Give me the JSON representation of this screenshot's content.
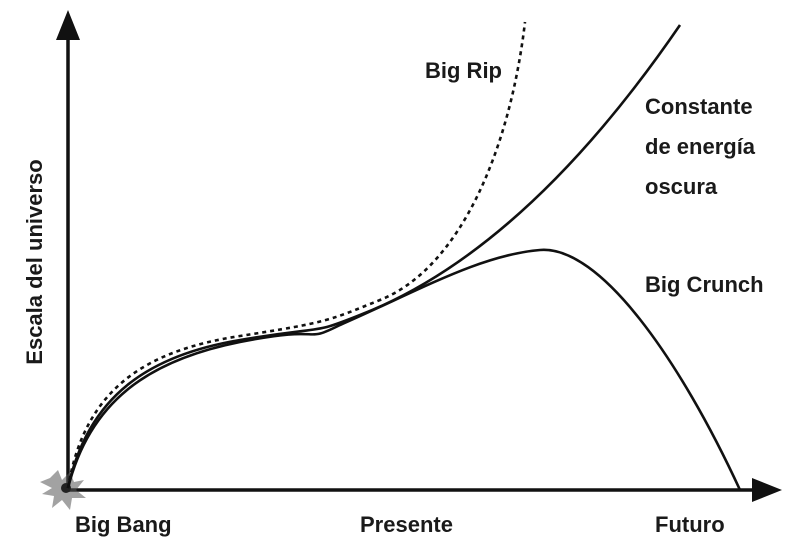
{
  "axis": {
    "y_label": "Escala del universo",
    "x_labels": [
      "Big Bang",
      "Presente",
      "Futuro"
    ]
  },
  "curves": [
    {
      "label": "Big Rip"
    },
    {
      "label_lines": [
        "Constante",
        "de energía",
        "oscura"
      ]
    },
    {
      "label": "Big Crunch"
    }
  ]
}
